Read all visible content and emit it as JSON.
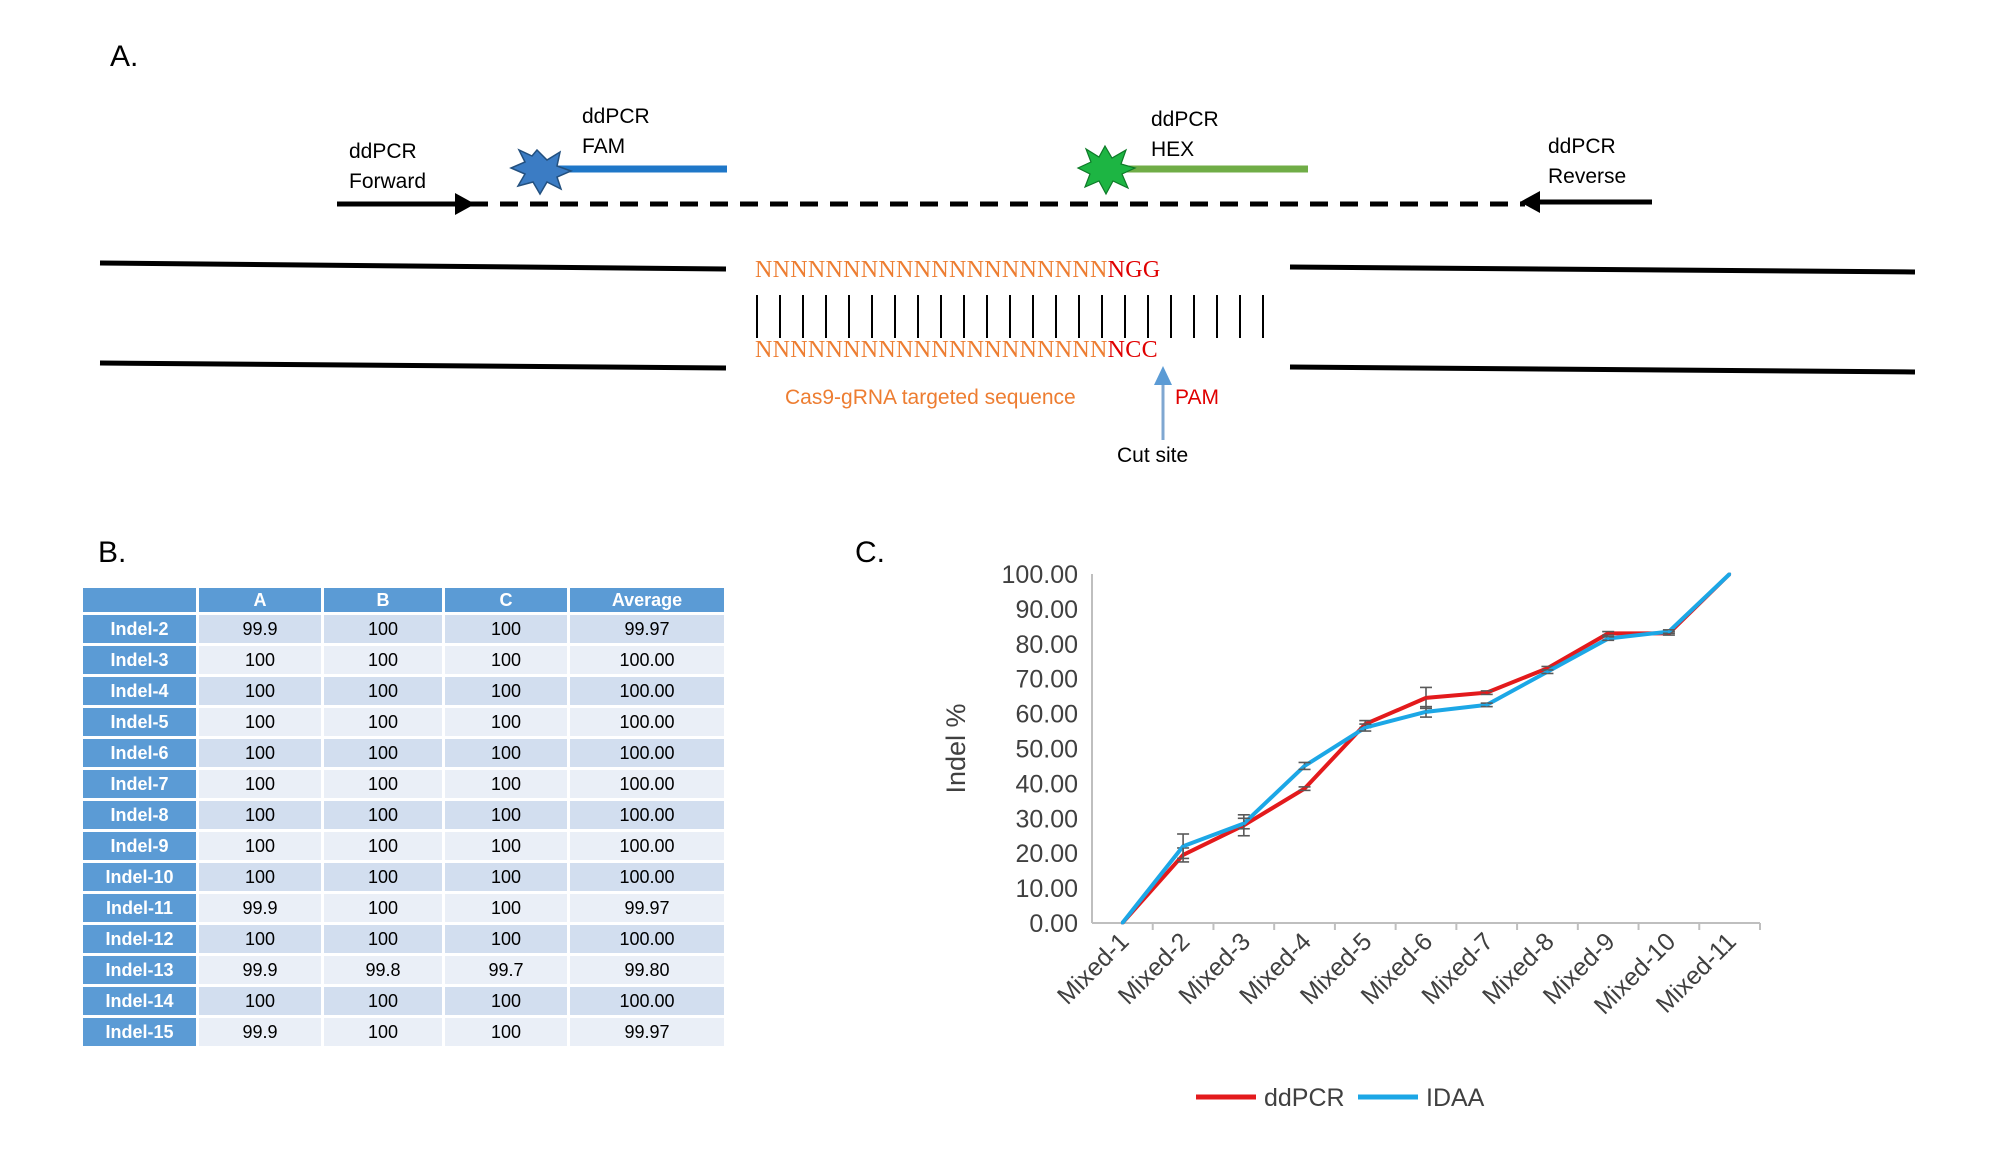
{
  "panels": {
    "a": "A.",
    "b": "B.",
    "c": "C."
  },
  "diagram": {
    "forward_primer": [
      "ddPCR",
      "Forward"
    ],
    "reverse_primer": [
      "ddPCR",
      "Reverse"
    ],
    "fam_probe": [
      "ddPCR",
      "FAM"
    ],
    "hex_probe": [
      "ddPCR",
      "HEX"
    ],
    "top_strand_target": "NNNNNNNNNNNNNNNNNNNN",
    "top_strand_pam": "NGG",
    "bottom_strand_target": "NNNNNNNNNNNNNNNNNNNN",
    "bottom_strand_pam": "NCC",
    "target_label": "Cas9-gRNA targeted sequence",
    "pam_label": "PAM",
    "cut_site_label": "Cut site",
    "colors": {
      "fam": "#1F77C8",
      "hex": "#70AD47",
      "target": "#ED7D31",
      "pam": "#E00000",
      "cut_arrow": "#7FA7D1"
    }
  },
  "table": {
    "headers": [
      "",
      "A",
      "B",
      "C",
      "Average"
    ],
    "rows": [
      [
        "Indel-2",
        "99.9",
        "100",
        "100",
        "99.97"
      ],
      [
        "Indel-3",
        "100",
        "100",
        "100",
        "100.00"
      ],
      [
        "Indel-4",
        "100",
        "100",
        "100",
        "100.00"
      ],
      [
        "Indel-5",
        "100",
        "100",
        "100",
        "100.00"
      ],
      [
        "Indel-6",
        "100",
        "100",
        "100",
        "100.00"
      ],
      [
        "Indel-7",
        "100",
        "100",
        "100",
        "100.00"
      ],
      [
        "Indel-8",
        "100",
        "100",
        "100",
        "100.00"
      ],
      [
        "Indel-9",
        "100",
        "100",
        "100",
        "100.00"
      ],
      [
        "Indel-10",
        "100",
        "100",
        "100",
        "100.00"
      ],
      [
        "Indel-11",
        "99.9",
        "100",
        "100",
        "99.97"
      ],
      [
        "Indel-12",
        "100",
        "100",
        "100",
        "100.00"
      ],
      [
        "Indel-13",
        "99.9",
        "99.8",
        "99.7",
        "99.80"
      ],
      [
        "Indel-14",
        "100",
        "100",
        "100",
        "100.00"
      ],
      [
        "Indel-15",
        "99.9",
        "100",
        "100",
        "99.97"
      ]
    ]
  },
  "chart_data": {
    "type": "line",
    "title": "",
    "xlabel": "",
    "ylabel": "Indel %",
    "ylim": [
      0,
      100
    ],
    "yticks": [
      "0.00",
      "10.00",
      "20.00",
      "30.00",
      "40.00",
      "50.00",
      "60.00",
      "70.00",
      "80.00",
      "90.00",
      "100.00"
    ],
    "categories": [
      "Mixed-1",
      "Mixed-2",
      "Mixed-3",
      "Mixed-4",
      "Mixed-5",
      "Mixed-6",
      "Mixed-7",
      "Mixed-8",
      "Mixed-9",
      "Mixed-10",
      "Mixed-11"
    ],
    "series": [
      {
        "name": "ddPCR",
        "color": "#E31A1C",
        "values": [
          0,
          19.5,
          28,
          38.5,
          57,
          64.5,
          66,
          73,
          83,
          83,
          100
        ],
        "errors": [
          0,
          2,
          3,
          0.5,
          1,
          3,
          0.5,
          0.5,
          0.5,
          0.5,
          0
        ]
      },
      {
        "name": "IDAA",
        "color": "#1CA7E6",
        "values": [
          0,
          22,
          28.5,
          45,
          56,
          60.5,
          62.5,
          72,
          81.5,
          83.5,
          100
        ],
        "errors": [
          0,
          3.5,
          1.5,
          1,
          1,
          1.5,
          0.5,
          0.5,
          0.5,
          0.5,
          0
        ]
      }
    ],
    "legend": "bottom-center",
    "grid": false
  }
}
